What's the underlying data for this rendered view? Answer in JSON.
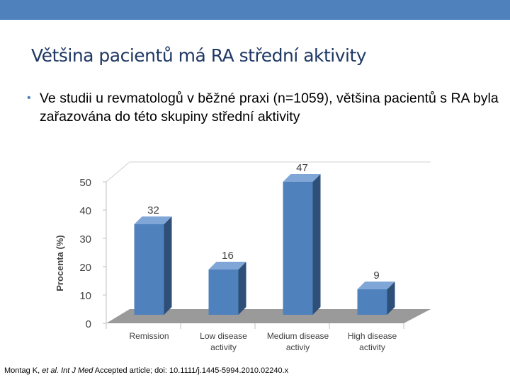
{
  "slide": {
    "title": "Většina pacientů má RA střední aktivity",
    "bullet": "Ve studii u revmatologů v běžné praxi (n=1059), většina pacientů s RA byla zařazována do této skupiny střední aktivity"
  },
  "citation": {
    "authors": "Montag K, ",
    "etal": "et al. Int J Med",
    "rest": " Accepted article; doi: 10.1111/j.1445-5994.2010.02240.x"
  },
  "colors": {
    "accent": "#4f81bd",
    "bar_front": "#4f81bd",
    "bar_side": "#2e4f78",
    "bar_top": "#7fa6d6",
    "floor": "#9a9a9a",
    "title": "#1f3864"
  },
  "chart_data": {
    "type": "bar",
    "ylabel": "Procenta (%)",
    "ylim": [
      0,
      50
    ],
    "yticks": [
      "0",
      "10",
      "20",
      "30",
      "40",
      "50"
    ],
    "categories": [
      [
        "Remission"
      ],
      [
        "Low disease",
        "activity"
      ],
      [
        "Medium disease",
        "activiy"
      ],
      [
        "High disease",
        "activity"
      ]
    ],
    "values": [
      32,
      16,
      47,
      9
    ],
    "data_labels": [
      "32",
      "16",
      "47",
      "9"
    ],
    "style": "3d-column",
    "grid": false
  }
}
